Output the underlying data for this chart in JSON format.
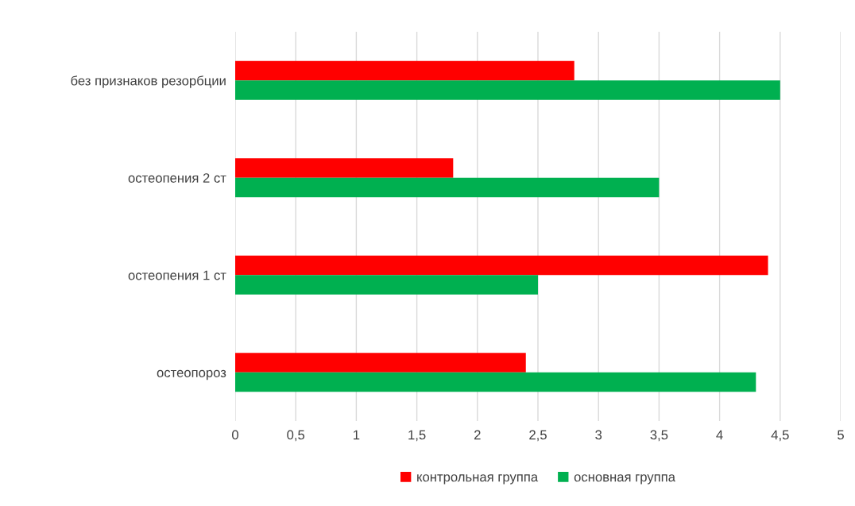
{
  "chart_data": {
    "type": "bar",
    "orientation": "horizontal",
    "categories": [
      "без признаков резорбции",
      "остеопения 2 ст",
      "остеопения 1 ст",
      "остеопороз"
    ],
    "series": [
      {
        "name": "контрольная группа",
        "color": "#ff0000",
        "values": [
          2.8,
          1.8,
          4.4,
          2.4
        ]
      },
      {
        "name": "основная группа",
        "color": "#00b050",
        "values": [
          4.5,
          3.5,
          2.5,
          4.3
        ]
      }
    ],
    "xlim": [
      0,
      5
    ],
    "xticks": [
      0,
      {
        "value": 0.5,
        "label": "0,5"
      },
      1,
      {
        "value": 1.5,
        "label": "1,5"
      },
      2,
      {
        "value": 2.5,
        "label": "2,5"
      },
      3,
      {
        "value": 3.5,
        "label": "3,5"
      },
      4,
      {
        "value": 4.5,
        "label": "4,5"
      },
      5
    ],
    "grid": "x",
    "legend": "bottom"
  }
}
